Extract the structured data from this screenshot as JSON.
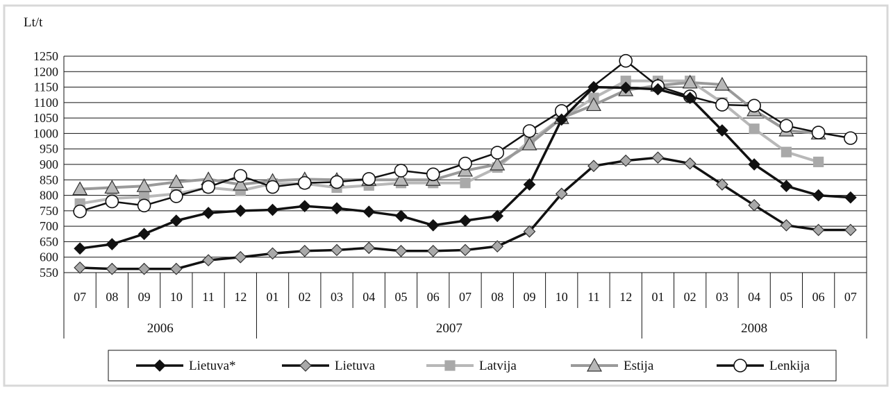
{
  "chart_data": {
    "type": "line",
    "ylabel": "Lt/t",
    "ylim": [
      550,
      1250
    ],
    "yticks": [
      550,
      600,
      650,
      700,
      750,
      800,
      850,
      900,
      950,
      1000,
      1050,
      1100,
      1150,
      1200,
      1250
    ],
    "grid": true,
    "legend_position": "bottom",
    "categories": [
      "07",
      "08",
      "09",
      "10",
      "11",
      "12",
      "01",
      "02",
      "03",
      "04",
      "05",
      "06",
      "07",
      "08",
      "09",
      "10",
      "11",
      "12",
      "01",
      "02",
      "03",
      "04",
      "05",
      "06",
      "07"
    ],
    "year_groups": [
      {
        "label": "2006",
        "start": 0,
        "end": 5
      },
      {
        "label": "2007",
        "start": 6,
        "end": 17
      },
      {
        "label": "2008",
        "start": 18,
        "end": 24
      }
    ],
    "series": [
      {
        "name": "Latvija",
        "marker": "square",
        "color": "#b8b8b8",
        "marker_fill": "#a9a9a9",
        "marker_stroke": "#a9a9a9",
        "values": [
          773,
          790,
          795,
          805,
          825,
          815,
          838,
          838,
          825,
          832,
          840,
          840,
          840,
          890,
          975,
          1050,
          1115,
          1170,
          1170,
          1170,
          1100,
          1015,
          940,
          908,
          null
        ]
      },
      {
        "name": "Estija",
        "marker": "triangle",
        "color": "#9a9a9a",
        "marker_fill": "#b8b8b8",
        "marker_stroke": "#333333",
        "values": [
          820,
          825,
          830,
          843,
          852,
          835,
          847,
          852,
          850,
          850,
          850,
          850,
          880,
          900,
          965,
          1050,
          1092,
          1140,
          1155,
          1165,
          1158,
          1075,
          1010,
          1000,
          null
        ]
      },
      {
        "name": "Lenkija",
        "marker": "circle",
        "color": "#111111",
        "marker_fill": "#ffffff",
        "marker_stroke": "#111111",
        "values": [
          748,
          780,
          767,
          797,
          827,
          863,
          827,
          840,
          843,
          853,
          880,
          868,
          903,
          938,
          1008,
          1073,
          null,
          1235,
          1153,
          1120,
          1093,
          1090,
          1025,
          1003,
          985
        ]
      },
      {
        "name": "Lietuva*",
        "marker": "diamond",
        "color": "#111111",
        "marker_fill": "#111111",
        "marker_stroke": "#111111",
        "values": [
          628,
          642,
          675,
          718,
          743,
          750,
          753,
          765,
          758,
          747,
          733,
          703,
          718,
          733,
          835,
          1045,
          1150,
          1148,
          1143,
          1115,
          1010,
          900,
          830,
          800,
          793
        ]
      },
      {
        "name": "Lietuva",
        "marker": "diamond",
        "color": "#111111",
        "marker_fill": "#a9a9a9",
        "marker_stroke": "#333333",
        "values": [
          566,
          562,
          562,
          562,
          590,
          600,
          612,
          620,
          623,
          630,
          620,
          620,
          623,
          635,
          683,
          805,
          895,
          912,
          922,
          903,
          835,
          768,
          703,
          688,
          688
        ]
      }
    ],
    "legend_order": [
      "Lietuva*",
      "Lietuva",
      "Latvija",
      "Estija",
      "Lenkija"
    ]
  }
}
